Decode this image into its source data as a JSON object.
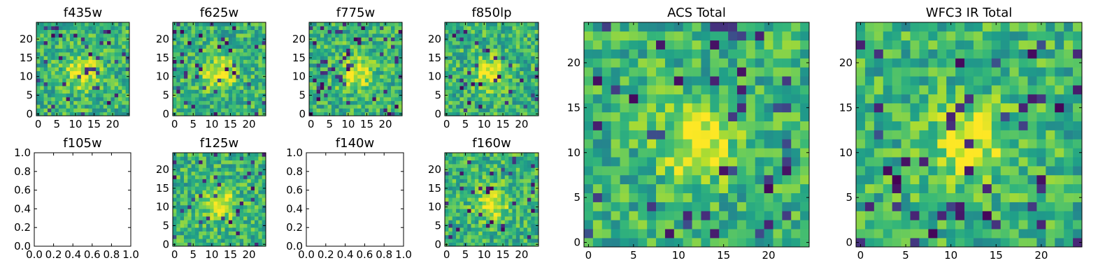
{
  "chart_data": [
    {
      "type": "heatmap",
      "title": "f435w",
      "xlim": [
        -0.5,
        24.5
      ],
      "ylim": [
        -0.5,
        24.5
      ],
      "xticks": [
        0,
        5,
        10,
        15,
        20
      ],
      "yticks": [
        0,
        5,
        10,
        15,
        20
      ],
      "xtick_labels": [
        "0",
        "5",
        "10",
        "15",
        "20"
      ],
      "ytick_labels": [
        "0",
        "5",
        "10",
        "15",
        "20"
      ],
      "grid_size": 25,
      "colormap": "viridis",
      "has_data": true
    },
    {
      "type": "heatmap",
      "title": "f625w",
      "xlim": [
        -0.5,
        24.5
      ],
      "ylim": [
        -0.5,
        24.5
      ],
      "xticks": [
        0,
        5,
        10,
        15,
        20
      ],
      "yticks": [
        0,
        5,
        10,
        15,
        20
      ],
      "xtick_labels": [
        "0",
        "5",
        "10",
        "15",
        "20"
      ],
      "ytick_labels": [
        "0",
        "5",
        "10",
        "15",
        "20"
      ],
      "grid_size": 25,
      "colormap": "viridis",
      "has_data": true
    },
    {
      "type": "heatmap",
      "title": "f775w",
      "xlim": [
        -0.5,
        24.5
      ],
      "ylim": [
        -0.5,
        24.5
      ],
      "xticks": [
        0,
        5,
        10,
        15,
        20
      ],
      "yticks": [
        0,
        5,
        10,
        15,
        20
      ],
      "xtick_labels": [
        "0",
        "5",
        "10",
        "15",
        "20"
      ],
      "ytick_labels": [
        "0",
        "5",
        "10",
        "15",
        "20"
      ],
      "grid_size": 25,
      "colormap": "viridis",
      "has_data": true
    },
    {
      "type": "heatmap",
      "title": "f850lp",
      "xlim": [
        -0.5,
        24.5
      ],
      "ylim": [
        -0.5,
        24.5
      ],
      "xticks": [
        0,
        5,
        10,
        15,
        20
      ],
      "yticks": [
        0,
        5,
        10,
        15,
        20
      ],
      "xtick_labels": [
        "0",
        "5",
        "10",
        "15",
        "20"
      ],
      "ytick_labels": [
        "0",
        "5",
        "10",
        "15",
        "20"
      ],
      "grid_size": 25,
      "colormap": "viridis",
      "has_data": true
    },
    {
      "type": "heatmap",
      "title": "f105w",
      "xlim": [
        0,
        1
      ],
      "ylim": [
        0,
        1
      ],
      "xticks": [
        0,
        0.2,
        0.4,
        0.6,
        0.8,
        1.0
      ],
      "yticks": [
        0,
        0.2,
        0.4,
        0.6,
        0.8,
        1.0
      ],
      "xtick_labels": [
        "0.0",
        "0.2",
        "0.4",
        "0.6",
        "0.8",
        "1.0"
      ],
      "ytick_labels": [
        "0.0",
        "0.2",
        "0.4",
        "0.6",
        "0.8",
        "1.0"
      ],
      "grid_size": 0,
      "colormap": "viridis",
      "has_data": false
    },
    {
      "type": "heatmap",
      "title": "f125w",
      "xlim": [
        -0.5,
        24.5
      ],
      "ylim": [
        -0.5,
        24.5
      ],
      "xticks": [
        0,
        5,
        10,
        15,
        20
      ],
      "yticks": [
        0,
        5,
        10,
        15,
        20
      ],
      "xtick_labels": [
        "0",
        "5",
        "10",
        "15",
        "20"
      ],
      "ytick_labels": [
        "0",
        "5",
        "10",
        "15",
        "20"
      ],
      "grid_size": 25,
      "colormap": "viridis",
      "has_data": true
    },
    {
      "type": "heatmap",
      "title": "f140w",
      "xlim": [
        0,
        1
      ],
      "ylim": [
        0,
        1
      ],
      "xticks": [
        0,
        0.2,
        0.4,
        0.6,
        0.8,
        1.0
      ],
      "yticks": [
        0,
        0.2,
        0.4,
        0.6,
        0.8,
        1.0
      ],
      "xtick_labels": [
        "0.0",
        "0.2",
        "0.4",
        "0.6",
        "0.8",
        "1.0"
      ],
      "ytick_labels": [
        "0.0",
        "0.2",
        "0.4",
        "0.6",
        "0.8",
        "1.0"
      ],
      "grid_size": 0,
      "colormap": "viridis",
      "has_data": false
    },
    {
      "type": "heatmap",
      "title": "f160w",
      "xlim": [
        -0.5,
        24.5
      ],
      "ylim": [
        -0.5,
        24.5
      ],
      "xticks": [
        0,
        5,
        10,
        15,
        20
      ],
      "yticks": [
        0,
        5,
        10,
        15,
        20
      ],
      "xtick_labels": [
        "0",
        "5",
        "10",
        "15",
        "20"
      ],
      "ytick_labels": [
        "0",
        "5",
        "10",
        "15",
        "20"
      ],
      "grid_size": 25,
      "colormap": "viridis",
      "has_data": true
    },
    {
      "type": "heatmap",
      "title": "ACS Total",
      "xlim": [
        -0.5,
        24.5
      ],
      "ylim": [
        -0.5,
        24.5
      ],
      "xticks": [
        0,
        5,
        10,
        15,
        20
      ],
      "yticks": [
        0,
        5,
        10,
        15,
        20
      ],
      "xtick_labels": [
        "0",
        "5",
        "10",
        "15",
        "20"
      ],
      "ytick_labels": [
        "0",
        "5",
        "10",
        "15",
        "20"
      ],
      "grid_size": 25,
      "colormap": "viridis",
      "has_data": true
    },
    {
      "type": "heatmap",
      "title": "WFC3 IR Total",
      "xlim": [
        -0.5,
        24.5
      ],
      "ylim": [
        -0.5,
        24.5
      ],
      "xticks": [
        0,
        5,
        10,
        15,
        20
      ],
      "yticks": [
        0,
        5,
        10,
        15,
        20
      ],
      "xtick_labels": [
        "0",
        "5",
        "10",
        "15",
        "20"
      ],
      "ytick_labels": [
        "0",
        "5",
        "10",
        "15",
        "20"
      ],
      "grid_size": 25,
      "colormap": "viridis",
      "has_data": true
    }
  ]
}
